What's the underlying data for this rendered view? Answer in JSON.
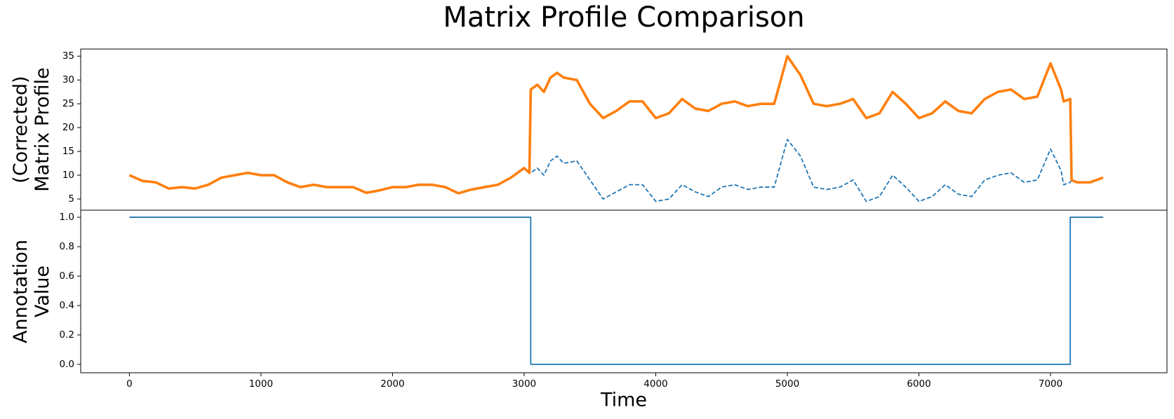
{
  "chart_data": [
    {
      "type": "line",
      "title": "Matrix Profile Comparison",
      "ylabel": [
        "(Corrected)",
        "Matrix Profile"
      ],
      "x": [
        0,
        100,
        200,
        300,
        400,
        500,
        600,
        700,
        800,
        900,
        1000,
        1100,
        1200,
        1300,
        1400,
        1500,
        1600,
        1700,
        1800,
        1900,
        2000,
        2100,
        2200,
        2300,
        2400,
        2500,
        2600,
        2700,
        2800,
        2900,
        3000,
        3040,
        3050,
        3100,
        3150,
        3200,
        3250,
        3300,
        3400,
        3500,
        3600,
        3700,
        3800,
        3900,
        4000,
        4100,
        4200,
        4300,
        4400,
        4500,
        4600,
        4700,
        4800,
        4900,
        5000,
        5100,
        5200,
        5300,
        5400,
        5500,
        5600,
        5700,
        5800,
        5900,
        6000,
        6100,
        6200,
        6300,
        6400,
        6500,
        6600,
        6700,
        6800,
        6900,
        7000,
        7080,
        7100,
        7150,
        7160,
        7200,
        7300,
        7400
      ],
      "series": [
        {
          "color": "#1f77b4",
          "dashed": true,
          "values": [
            10,
            8.8,
            8.5,
            7.2,
            7.5,
            7.2,
            8,
            9.5,
            10,
            10.5,
            10,
            10,
            8.5,
            7.5,
            8,
            7.5,
            7.5,
            7.5,
            6.3,
            6.8,
            7.5,
            7.5,
            8,
            8,
            7.5,
            6.2,
            7,
            7.5,
            8,
            9.5,
            11.5,
            10.5,
            10.5,
            11.5,
            10,
            13,
            14,
            12.5,
            13,
            9,
            5,
            6.5,
            8,
            8,
            4.5,
            5,
            8,
            6.5,
            5.5,
            7.5,
            8,
            7,
            7.5,
            7.5,
            17.5,
            14,
            7.5,
            7,
            7.5,
            9,
            4.5,
            5.5,
            10,
            7.5,
            4.5,
            5.5,
            8,
            6,
            5.5,
            9,
            10,
            10.5,
            8.5,
            9,
            15.5,
            11,
            8,
            8.5,
            9,
            8.5,
            8.5,
            9.5
          ]
        },
        {
          "color": "#ff7f0e",
          "dashed": false,
          "values": [
            10,
            8.8,
            8.5,
            7.2,
            7.5,
            7.2,
            8,
            9.5,
            10,
            10.5,
            10,
            10,
            8.5,
            7.5,
            8,
            7.5,
            7.5,
            7.5,
            6.3,
            6.8,
            7.5,
            7.5,
            8,
            8,
            7.5,
            6.2,
            7,
            7.5,
            8,
            9.5,
            11.5,
            10.5,
            28,
            29,
            27.5,
            30.5,
            31.5,
            30.5,
            30,
            25,
            22,
            23.5,
            25.5,
            25.5,
            22,
            23,
            26,
            24,
            23.5,
            25,
            25.5,
            24.5,
            25,
            25,
            35,
            31,
            25,
            24.5,
            25,
            26,
            22,
            23,
            27.5,
            25,
            22,
            23,
            25.5,
            23.5,
            23,
            26,
            27.5,
            28,
            26,
            26.5,
            33.5,
            28,
            25.5,
            26,
            9,
            8.5,
            8.5,
            9.5
          ]
        }
      ],
      "xlim": [
        -370,
        7885
      ],
      "ylim": [
        2.65,
        36.5
      ],
      "yticks": [
        5,
        10,
        15,
        20,
        25,
        30,
        35
      ]
    },
    {
      "type": "line",
      "ylabel": [
        "Annotation",
        "Value"
      ],
      "xlabel": "Time",
      "x": [
        0,
        3050,
        3050,
        7150,
        7150,
        7400
      ],
      "series": [
        {
          "color": "#1f77b4",
          "dashed": false,
          "values": [
            1,
            1,
            0,
            0,
            1,
            1
          ]
        }
      ],
      "xlim": [
        -370,
        7885
      ],
      "ylim": [
        -0.057,
        1.048
      ],
      "xticks": [
        0,
        1000,
        2000,
        3000,
        4000,
        5000,
        6000,
        7000
      ],
      "yticks": [
        {
          "value": 0,
          "label": "0.0"
        },
        {
          "value": 0.2,
          "label": "0.2"
        },
        {
          "value": 0.4,
          "label": "0.4"
        },
        {
          "value": 0.6,
          "label": "0.6"
        },
        {
          "value": 0.8,
          "label": "0.8"
        },
        {
          "value": 1,
          "label": "1.0"
        }
      ]
    }
  ]
}
